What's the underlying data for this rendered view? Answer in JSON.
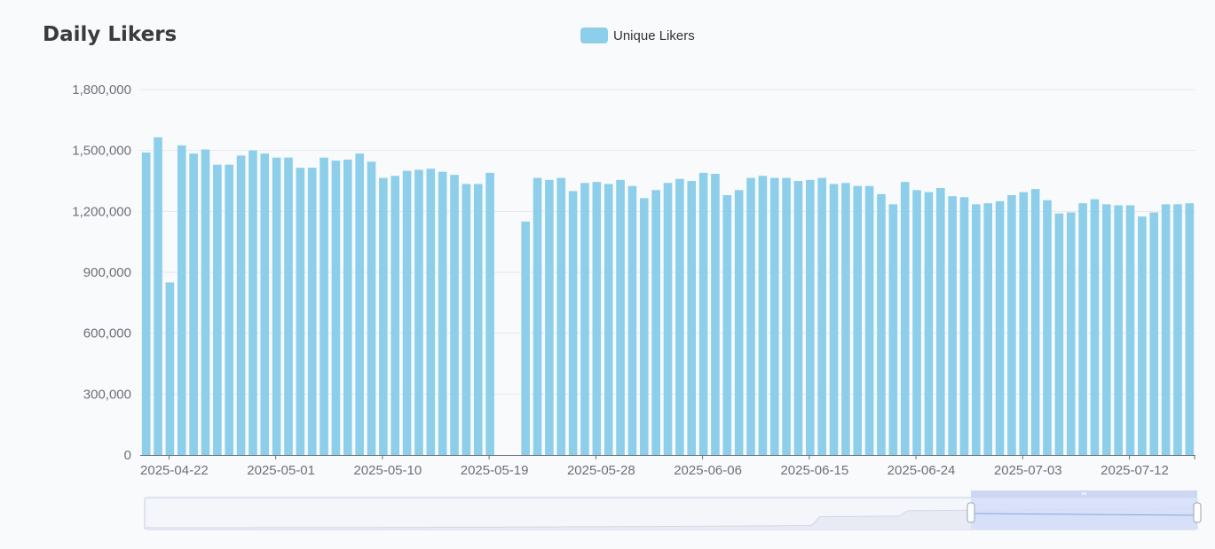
{
  "title": "Daily Likers",
  "legend": {
    "label": "Unique Likers",
    "color": "#8dcfea"
  },
  "colors": {
    "bar": "#8dcfea",
    "grid": "#e4e7ee",
    "axis": "#6e7079",
    "zoom_fill": "#d4def8",
    "zoom_border": "#c5cde6"
  },
  "zoom": {
    "start_fraction": 0.785,
    "end_fraction": 1.0
  },
  "chart_data": {
    "type": "bar",
    "title": "Daily Likers",
    "series": [
      {
        "name": "Unique Likers",
        "color": "#8dcfea"
      }
    ],
    "start_date": "2025-04-20",
    "x_tick_labels": [
      "2025-04-22",
      "2025-05-01",
      "2025-05-10",
      "2025-05-19",
      "2025-05-28",
      "2025-06-06",
      "2025-06-15",
      "2025-06-24",
      "2025-07-03",
      "2025-07-12"
    ],
    "y_tick_labels": [
      "0",
      "300,000",
      "600,000",
      "900,000",
      "1,200,000",
      "1,500,000",
      "1,800,000"
    ],
    "ylim": [
      0,
      1800000
    ],
    "grid": true,
    "legend_position": "top-center",
    "values": [
      1490000,
      1565000,
      850000,
      1525000,
      1485000,
      1505000,
      1430000,
      1430000,
      1475000,
      1500000,
      1485000,
      1465000,
      1465000,
      1415000,
      1415000,
      1465000,
      1450000,
      1455000,
      1485000,
      1445000,
      1365000,
      1375000,
      1400000,
      1405000,
      1410000,
      1395000,
      1380000,
      1335000,
      1335000,
      1390000,
      null,
      null,
      1150000,
      1365000,
      1355000,
      1365000,
      1300000,
      1340000,
      1345000,
      1335000,
      1355000,
      1325000,
      1265000,
      1305000,
      1340000,
      1360000,
      1350000,
      1390000,
      1385000,
      1280000,
      1305000,
      1365000,
      1375000,
      1365000,
      1365000,
      1350000,
      1355000,
      1365000,
      1335000,
      1340000,
      1325000,
      1325000,
      1285000,
      1235000,
      1345000,
      1305000,
      1295000,
      1315000,
      1275000,
      1270000,
      1235000,
      1240000,
      1250000,
      1280000,
      1295000,
      1310000,
      1255000,
      1190000,
      1195000,
      1240000,
      1260000,
      1235000,
      1230000,
      1230000,
      1175000,
      1195000,
      1235000,
      1235000,
      1240000
    ]
  }
}
